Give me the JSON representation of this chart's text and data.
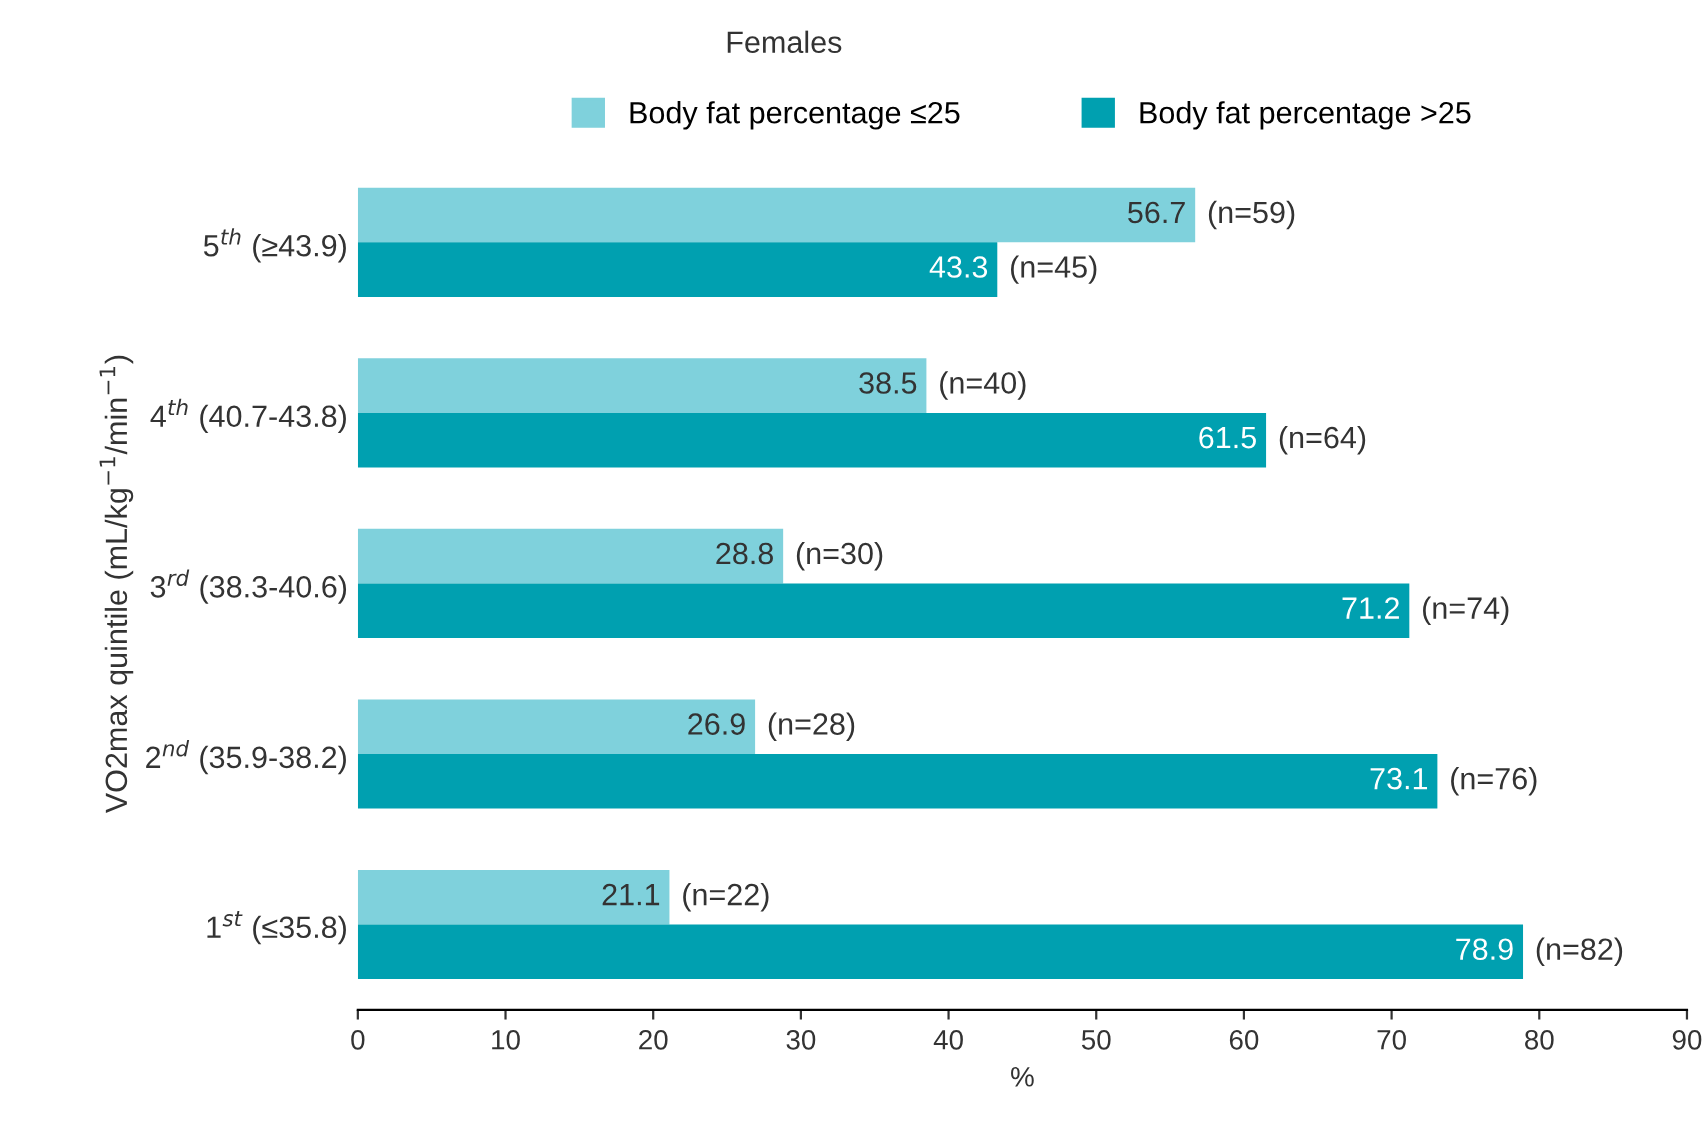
{
  "chart_data": {
    "type": "bar",
    "orientation": "horizontal",
    "title": "Females",
    "xlabel": "%",
    "ylabel": "VO2max quintile (mL/kg$^{−1}$/min$^{−1}$)",
    "categories": [
      "5$^{th}$ (≥43.9)",
      "4$^{th}$ (40.7-43.8)",
      "3$^{rd}$ (38.3-40.6)",
      "2$^{nd}$ (35.9-38.2)",
      "1$^{st}$ (≤35.8)"
    ],
    "series": [
      {
        "name": "Body fat percentage ≤25",
        "color": "#7fd1dc",
        "values": [
          56.7,
          38.5,
          28.8,
          26.9,
          21.1
        ]
      },
      {
        "name": "Body fat percentage >25",
        "color": "#00a0b0",
        "values": [
          43.3,
          61.5,
          71.2,
          73.1,
          78.9
        ]
      }
    ],
    "xlim": [
      0,
      90
    ],
    "xticks": [
      0,
      10,
      20,
      30,
      40,
      50,
      60,
      70,
      80,
      90
    ],
    "data_labels": true,
    "grid": false,
    "legend": "top",
    "annotations": [
      {
        "text": "(n=59)",
        "x": 56.7,
        "y": "5$^{th}$ (≥43.9)"
      },
      {
        "text": "(n=45)",
        "x": 43.3,
        "y": "5$^{th}$ (≥43.9)"
      },
      {
        "text": "(n=40)",
        "x": 38.5,
        "y": "4$^{th}$ (40.7-43.8)"
      },
      {
        "text": "(n=64)",
        "x": 61.5,
        "y": "4$^{th}$ (40.7-43.8)"
      },
      {
        "text": "(n=30)",
        "x": 28.8,
        "y": "3$^{rd}$ (38.3-40.6)"
      },
      {
        "text": "(n=74)",
        "x": 71.2,
        "y": "3$^{rd}$ (38.3-40.6)"
      },
      {
        "text": "(n=28)",
        "x": 26.9,
        "y": "2$^{nd}$ (35.9-38.2)"
      },
      {
        "text": "(n=76)",
        "x": 73.1,
        "y": "2$^{nd}$ (35.9-38.2)"
      },
      {
        "text": "(n=22)",
        "x": 21.1,
        "y": "1$^{st}$ (≤35.8)"
      },
      {
        "text": "(n=82)",
        "x": 78.9,
        "y": "1$^{st}$ (≤35.8)"
      }
    ]
  }
}
